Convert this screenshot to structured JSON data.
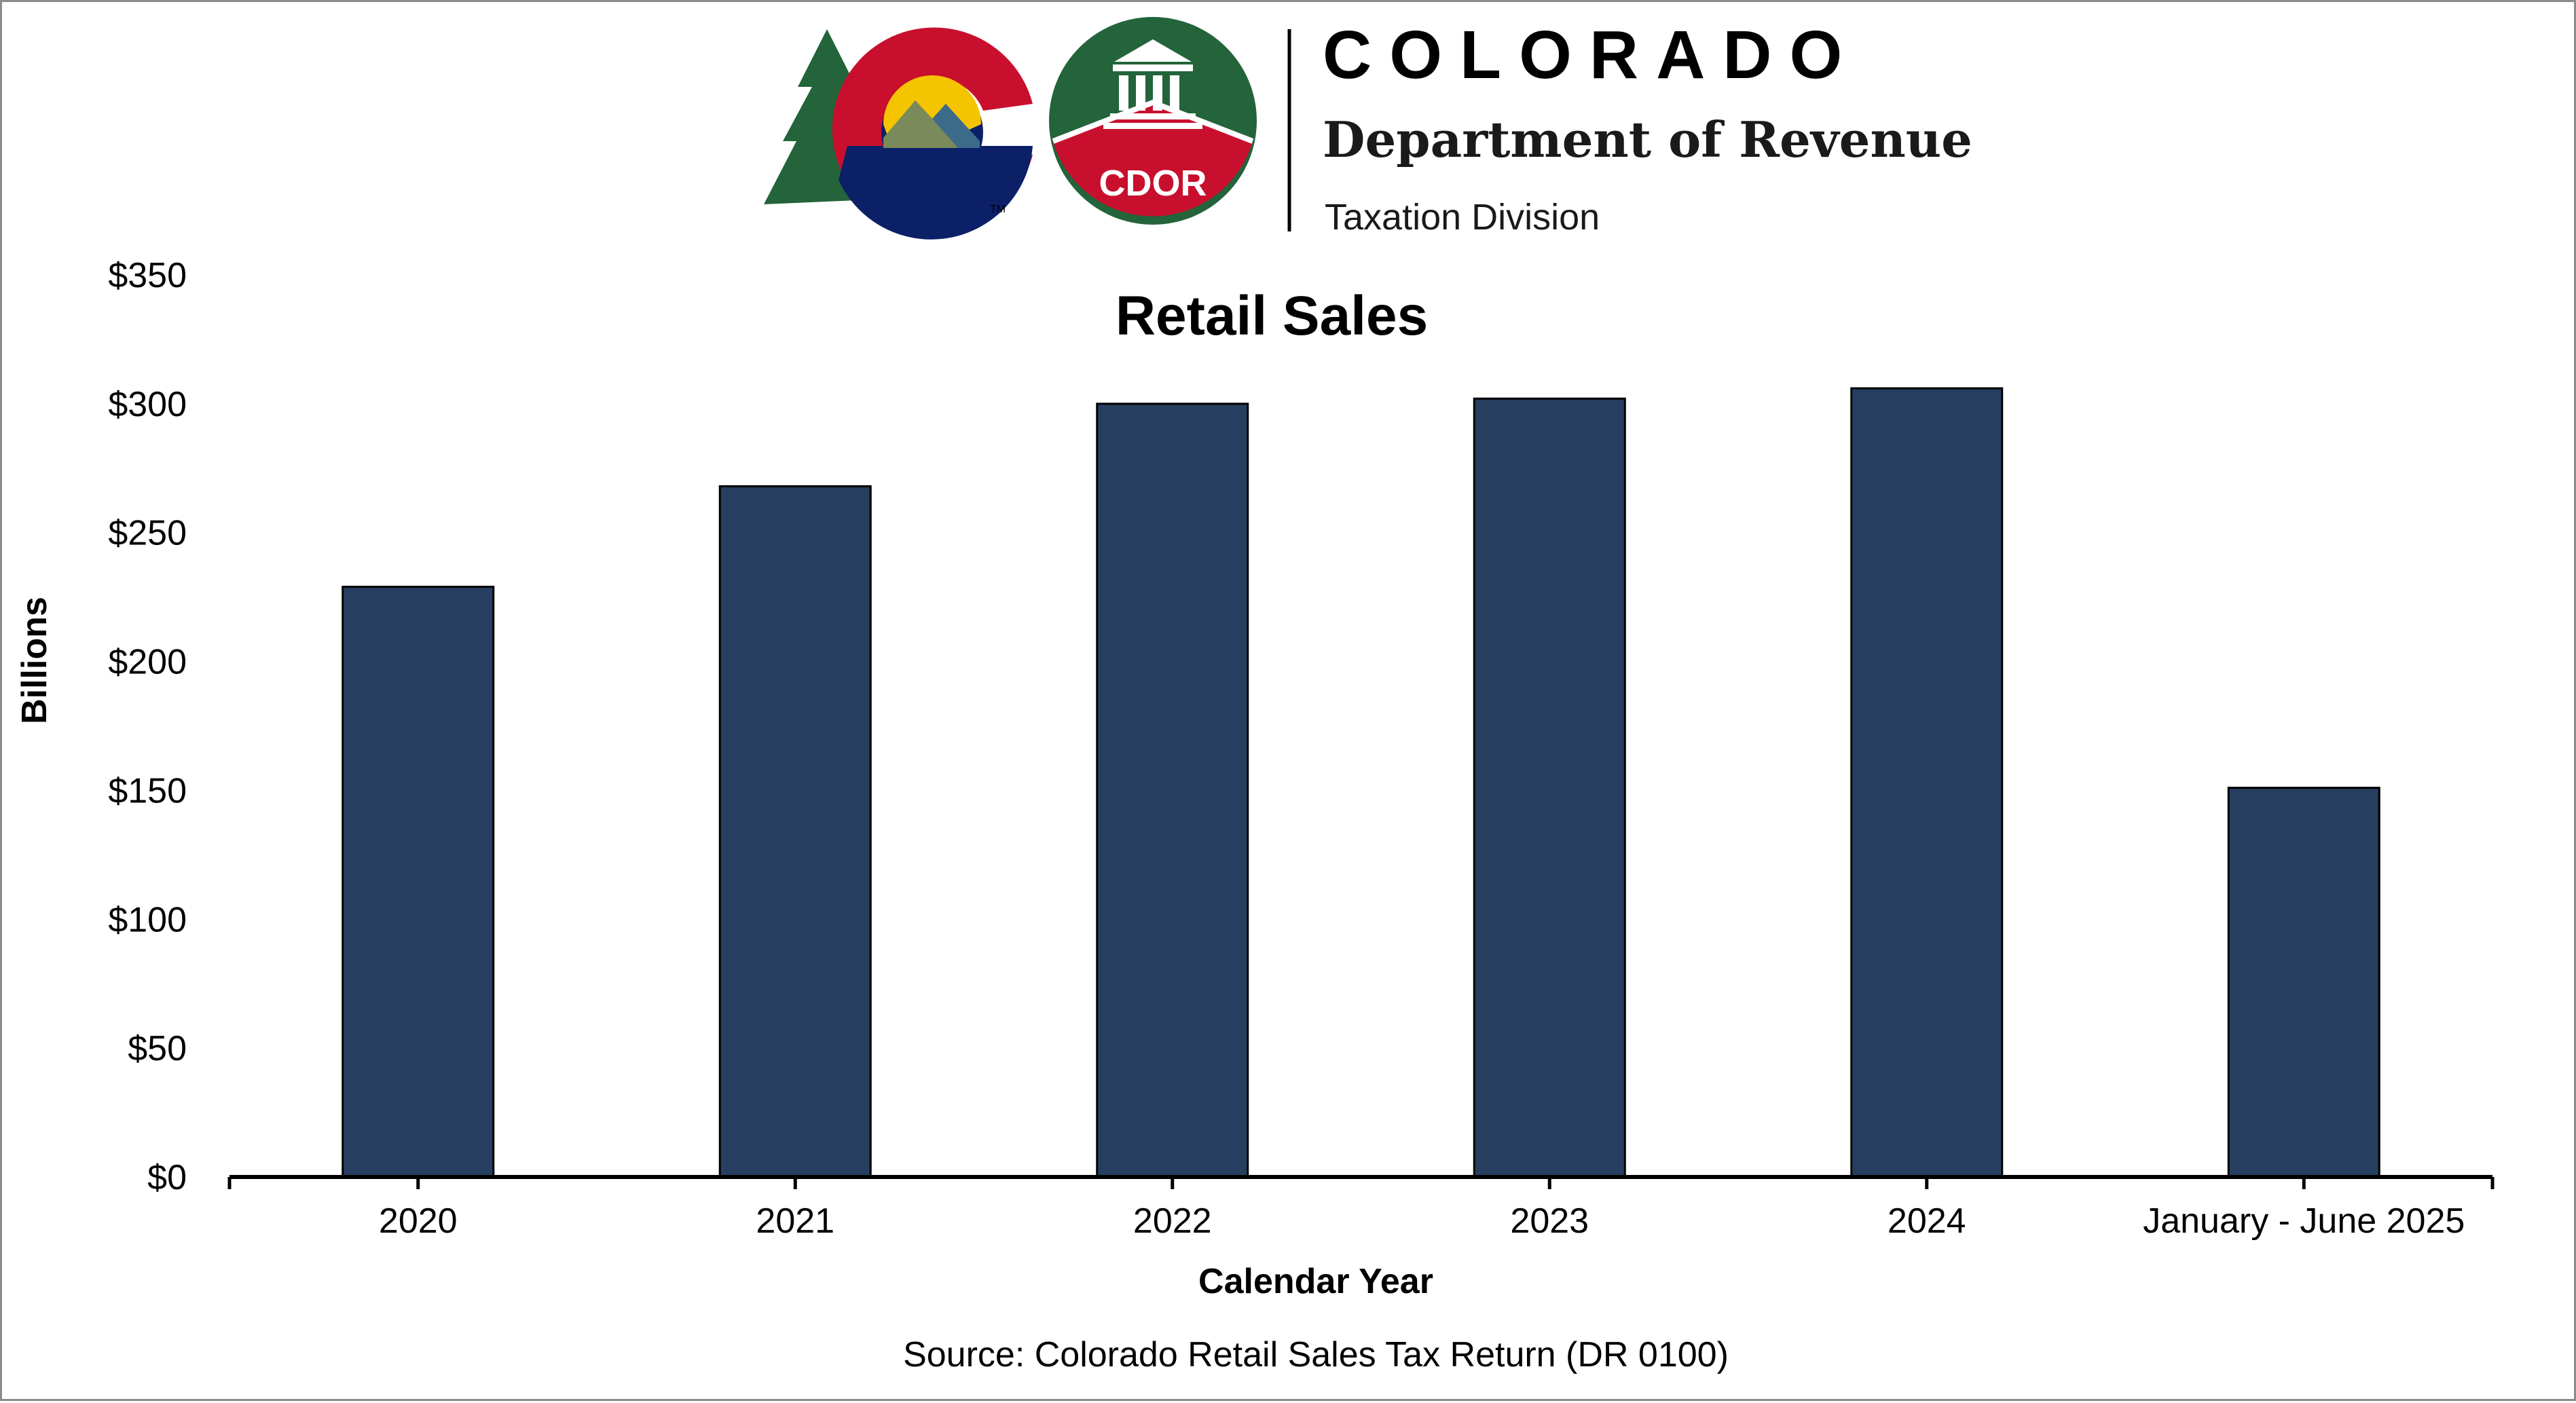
{
  "header": {
    "state_name": "COLORADO",
    "department": "Department of Revenue",
    "division": "Taxation Division",
    "logo_badge": "CDOR",
    "trademark": "TM"
  },
  "colors": {
    "bar": "#263f60",
    "logo_red": "#c8102e",
    "logo_green": "#23643a",
    "logo_navy": "#0c2068",
    "logo_gold": "#f5c400"
  },
  "chart_data": {
    "type": "bar",
    "title": "Retail Sales",
    "xlabel": "Calendar Year",
    "ylabel": "Billions",
    "categories": [
      "2020",
      "2021",
      "2022",
      "2023",
      "2024",
      "January - June 2025"
    ],
    "values": [
      229,
      268,
      300,
      302,
      306,
      151
    ],
    "ylim": [
      0,
      350
    ],
    "yticks": [
      0,
      50,
      100,
      150,
      200,
      250,
      300,
      350
    ],
    "ytick_labels": [
      "$0",
      "$50",
      "$100",
      "$150",
      "$200",
      "$250",
      "$300",
      "$350"
    ],
    "grid": false,
    "legend": "none"
  },
  "source": "Source: Colorado Retail Sales Tax Return (DR 0100)"
}
